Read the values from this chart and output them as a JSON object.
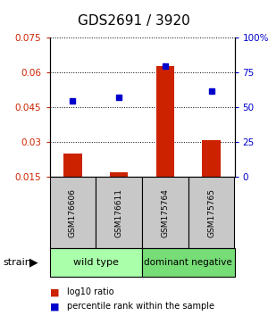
{
  "title": "GDS2691 / 3920",
  "samples": [
    "GSM176606",
    "GSM176611",
    "GSM175764",
    "GSM175765"
  ],
  "log10_ratio": [
    0.025,
    0.017,
    0.063,
    0.031
  ],
  "percentile_rank": [
    55,
    57,
    80,
    62
  ],
  "ylim_left": [
    0.015,
    0.075
  ],
  "ylim_right": [
    0,
    100
  ],
  "yticks_left": [
    0.015,
    0.03,
    0.045,
    0.06,
    0.075
  ],
  "yticks_right": [
    0,
    25,
    50,
    75,
    100
  ],
  "ytick_labels_left": [
    "0.015",
    "0.03",
    "0.045",
    "0.06",
    "0.075"
  ],
  "ytick_labels_right": [
    "0",
    "25",
    "50",
    "75",
    "100%"
  ],
  "bar_color": "#cc2200",
  "dot_color": "#0000cc",
  "bar_width": 0.4,
  "wild_type_color": "#aaffaa",
  "dominant_neg_color": "#77dd77",
  "sample_box_color": "#c8c8c8",
  "legend_bar_label": "log10 ratio",
  "legend_dot_label": "percentile rank within the sample",
  "strain_label": "strain",
  "group_labels": [
    "wild type",
    "dominant negative"
  ],
  "group_spans": [
    2,
    2
  ]
}
